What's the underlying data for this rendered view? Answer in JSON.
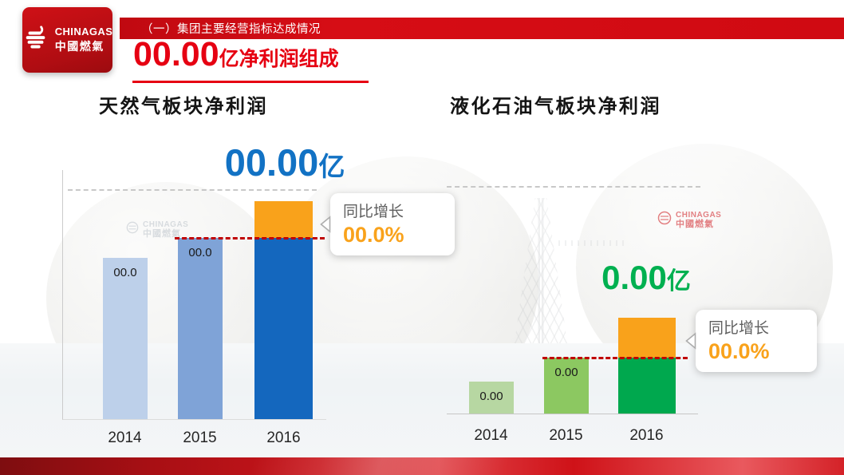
{
  "logo": {
    "name_en": "CHINAGAS",
    "name_cn": "中國燃氣"
  },
  "banner": {
    "text": "（一）集团主要经营指标达成情况"
  },
  "title": {
    "number": "00.00",
    "suffix": "亿净利润组成"
  },
  "watermark": {
    "name_en": "CHINAGAS",
    "name_cn": "中國燃氣"
  },
  "colors": {
    "banner_red": "#d00a11",
    "title_red": "#e60012",
    "blue_headline": "#1272c4",
    "green_headline": "#00b050",
    "orange": "#f9a21b",
    "reference_line_red": "#c00000"
  },
  "icons": {
    "logo_flame": "flame-icon",
    "callout_arrow": "left-arrow-icon"
  },
  "chart_data": [
    {
      "type": "bar",
      "title": "天然气板块净利润",
      "headline": {
        "value": "00.00",
        "unit": "亿",
        "color": "#1272c4"
      },
      "categories": [
        "2014",
        "2015",
        "2016"
      ],
      "bars": [
        {
          "category": "2014",
          "label": "00.0",
          "value_rel": 74,
          "color": "#bdd0ea"
        },
        {
          "category": "2015",
          "label": "00.0",
          "value_rel": 83,
          "color": "#7fa3d7"
        },
        {
          "category": "2016",
          "label": "",
          "value_rel": 100,
          "color": "#1467be",
          "growth_rel": 17,
          "growth_color": "#f9a21b"
        }
      ],
      "reference_line": {
        "level_rel": 83,
        "color": "#c00000",
        "style": "dashed"
      },
      "callout": {
        "label": "同比增长",
        "value": "00.0%"
      },
      "grid": {
        "top_dashed_line": true
      },
      "value_scale": "relative units, 2016 total = 100 (slide figures are masked placeholders)"
    },
    {
      "type": "bar",
      "title": "液化石油气板块净利润",
      "headline": {
        "value": "0.00",
        "unit": "亿",
        "color": "#00b050"
      },
      "categories": [
        "2014",
        "2015",
        "2016"
      ],
      "bars": [
        {
          "category": "2014",
          "label": "0.00",
          "value_rel": 33,
          "color": "#b7d7a2"
        },
        {
          "category": "2015",
          "label": "0.00",
          "value_rel": 58,
          "color": "#8cc861"
        },
        {
          "category": "2016",
          "label": "",
          "value_rel": 100,
          "color": "#00a84e",
          "growth_rel": 42,
          "growth_color": "#f9a21b"
        }
      ],
      "reference_line": {
        "level_rel": 58,
        "color": "#c00000",
        "style": "dashed"
      },
      "callout": {
        "label": "同比增长",
        "value": "00.0%"
      },
      "grid": {
        "top_dashed_line": true
      },
      "value_scale": "relative units, 2016 total = 100 (slide figures are masked placeholders)"
    }
  ]
}
